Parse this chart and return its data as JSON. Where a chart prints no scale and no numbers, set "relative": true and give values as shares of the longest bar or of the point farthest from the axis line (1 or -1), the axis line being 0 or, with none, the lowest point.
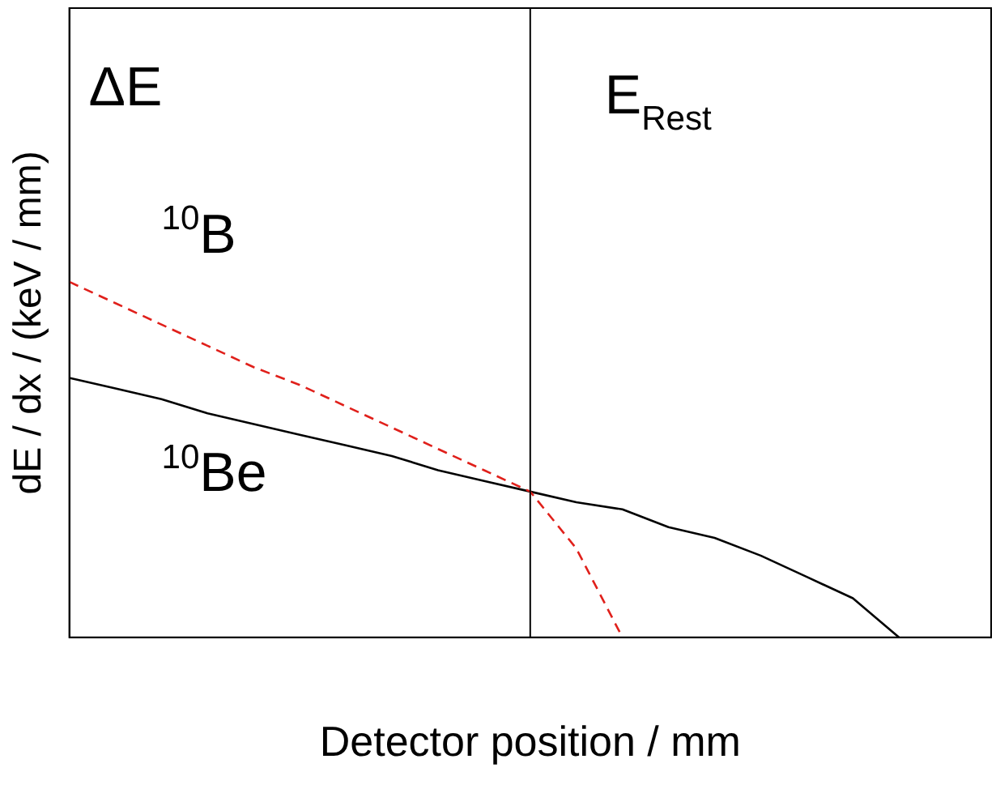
{
  "chart_data": {
    "type": "line",
    "xlabel": "Detector position / mm",
    "ylabel": "dE / dx / (keV / mm)",
    "relative": true,
    "marker": "none",
    "grid": false,
    "legend": false,
    "categories": [
      null,
      null,
      null,
      null,
      null,
      null,
      null,
      null,
      null,
      null,
      null,
      null,
      null,
      null,
      null,
      null,
      null,
      null,
      null,
      null,
      null
    ],
    "series": [
      {
        "name": "$^{10}$B",
        "color": "#e0201b",
        "line_style": "dashed",
        "values": [
          1,
          0.94,
          0.88,
          0.82,
          0.76,
          0.71,
          0.65,
          0.59,
          0.53,
          0.47,
          0.41,
          0.25,
          0,
          null,
          null,
          null,
          null,
          null,
          null,
          null,
          null
        ]
      },
      {
        "name": "$^{10}$Be",
        "color": "#000000",
        "line_style": "solid",
        "values": [
          0.73,
          0.7,
          0.67,
          0.63,
          0.6,
          0.57,
          0.54,
          0.51,
          0.47,
          0.44,
          0.41,
          0.38,
          0.36,
          0.31,
          0.28,
          0.23,
          0.17,
          0.11,
          0,
          null,
          null
        ]
      }
    ],
    "annotations": [
      {
        "text": "ΔE"
      },
      {
        "text": "E$_{Rest}$"
      }
    ]
  }
}
